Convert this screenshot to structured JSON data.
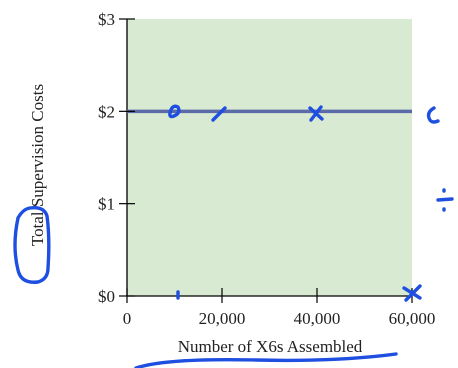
{
  "chart_data": {
    "type": "line",
    "title": "",
    "xlabel": "Number of X6s Assembled",
    "ylabel": "Total Supervision Costs",
    "x": [
      0,
      60000
    ],
    "series": [
      {
        "values": [
          2,
          2
        ]
      }
    ],
    "xlim": [
      0,
      60000
    ],
    "ylim": [
      0,
      3
    ],
    "xticks": [
      0,
      20000,
      40000,
      60000
    ],
    "xtick_labels": [
      "0",
      "20,000",
      "40,000",
      "60,000"
    ],
    "yticks": [
      0,
      1,
      2,
      3
    ],
    "ytick_labels": [
      "$0",
      "$1",
      "$2",
      "$3"
    ],
    "grid": false,
    "colors": {
      "plot_background": "#d9ead3",
      "series_line": "#5b6ba8",
      "axes": "#000000",
      "annotation_ink": "#1f4fe0"
    },
    "annotations": "handwritten blue pen markings"
  }
}
